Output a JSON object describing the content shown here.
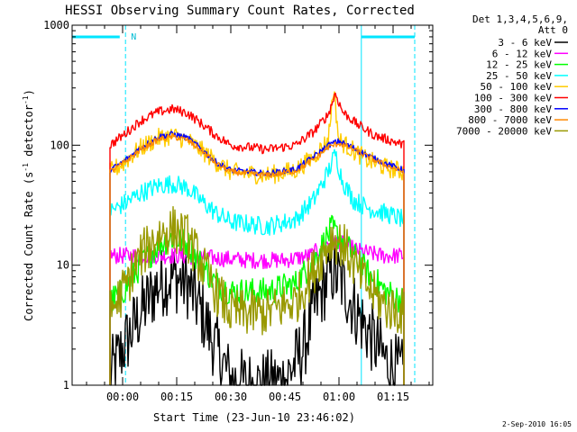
{
  "chart_data": {
    "type": "line",
    "title": "HESSI Observing Summary Count Rates, Corrected",
    "xlabel": "Start Time (23-Jun-10 23:46:02)",
    "ylabel_main": "Corrected Count Rate (s",
    "ylabel_exp1": "-1",
    "ylabel_mid": " detector",
    "ylabel_exp2": "-1",
    "ylabel_end": ")",
    "y_scale": "log",
    "ylim": [
      1,
      1000
    ],
    "xlim_minutes": [
      -14,
      86
    ],
    "x_ticks": [
      {
        "value": 0,
        "label": "00:00"
      },
      {
        "value": 15,
        "label": "00:15"
      },
      {
        "value": 30,
        "label": "00:30"
      },
      {
        "value": 45,
        "label": "00:45"
      },
      {
        "value": 60,
        "label": "01:00"
      },
      {
        "value": 75,
        "label": "01:15"
      }
    ],
    "y_ticks": [
      {
        "value": 1,
        "label": "1"
      },
      {
        "value": 10,
        "label": "10"
      },
      {
        "value": 100,
        "label": "100"
      },
      {
        "value": 1000,
        "label": "1000"
      }
    ],
    "legend_header": [
      "Det 1,3,4,5,6,9,",
      "Att 0"
    ],
    "legend_position": "right",
    "night_label": "N",
    "timestamp": "2-Sep-2010 16:05",
    "data_start_min": -3.5,
    "data_end_min": 78,
    "markers": [
      {
        "x": -14,
        "style": "solid"
      },
      {
        "x": 0.8,
        "style": "dashed"
      },
      {
        "x": 66.2,
        "style": "solid"
      },
      {
        "x": 81,
        "style": "dashed"
      }
    ],
    "night_bars": [
      {
        "x0": -14,
        "x1": -0.8,
        "y": 800
      },
      {
        "x0": 66.2,
        "x1": 81,
        "y": 800
      }
    ],
    "series": [
      {
        "name": "3 - 6 keV",
        "color": "#000000",
        "noise": 0.3,
        "points": [
          [
            -3.5,
            1.2
          ],
          [
            0,
            2
          ],
          [
            5,
            4
          ],
          [
            10,
            7
          ],
          [
            14,
            8
          ],
          [
            18,
            7
          ],
          [
            22,
            4
          ],
          [
            26,
            2
          ],
          [
            30,
            1.1
          ],
          [
            35,
            1
          ],
          [
            40,
            1
          ],
          [
            45,
            1.1
          ],
          [
            50,
            2
          ],
          [
            54,
            5
          ],
          [
            58,
            9
          ],
          [
            61,
            7
          ],
          [
            65,
            4
          ],
          [
            69,
            2.5
          ],
          [
            73,
            1.6
          ],
          [
            78,
            1.2
          ]
        ]
      },
      {
        "name": "6 - 12 keV",
        "color": "#ff00ff",
        "noise": 0.07,
        "points": [
          [
            -3.5,
            12
          ],
          [
            5,
            12
          ],
          [
            15,
            12
          ],
          [
            25,
            11.5
          ],
          [
            35,
            11
          ],
          [
            45,
            11
          ],
          [
            52,
            12
          ],
          [
            58,
            16
          ],
          [
            61,
            15
          ],
          [
            66,
            13
          ],
          [
            72,
            12
          ],
          [
            78,
            12
          ]
        ]
      },
      {
        "name": "12 - 25 keV",
        "color": "#00ff00",
        "noise": 0.12,
        "points": [
          [
            -3.5,
            5
          ],
          [
            0,
            6
          ],
          [
            5,
            10
          ],
          [
            10,
            15
          ],
          [
            14,
            17
          ],
          [
            18,
            15
          ],
          [
            22,
            10
          ],
          [
            26,
            7
          ],
          [
            30,
            6
          ],
          [
            40,
            6
          ],
          [
            48,
            7
          ],
          [
            53,
            11
          ],
          [
            58,
            20
          ],
          [
            61,
            16
          ],
          [
            65,
            11
          ],
          [
            69,
            8
          ],
          [
            73,
            6
          ],
          [
            78,
            5
          ]
        ]
      },
      {
        "name": "25 - 50 keV",
        "color": "#00ffff",
        "noise": 0.08,
        "points": [
          [
            -3.5,
            28
          ],
          [
            0,
            32
          ],
          [
            5,
            40
          ],
          [
            10,
            46
          ],
          [
            14,
            48
          ],
          [
            18,
            44
          ],
          [
            22,
            34
          ],
          [
            26,
            27
          ],
          [
            30,
            23
          ],
          [
            40,
            21
          ],
          [
            48,
            24
          ],
          [
            53,
            35
          ],
          [
            57,
            60
          ],
          [
            59,
            85
          ],
          [
            61,
            50
          ],
          [
            64,
            35
          ],
          [
            68,
            30
          ],
          [
            73,
            27
          ],
          [
            78,
            24
          ]
        ]
      },
      {
        "name": "50 - 100 keV",
        "color": "#ffcc00",
        "noise": 0.08,
        "points": [
          [
            -3.5,
            60
          ],
          [
            0,
            70
          ],
          [
            5,
            95
          ],
          [
            10,
            115
          ],
          [
            14,
            120
          ],
          [
            18,
            110
          ],
          [
            22,
            90
          ],
          [
            26,
            72
          ],
          [
            30,
            60
          ],
          [
            40,
            56
          ],
          [
            48,
            62
          ],
          [
            53,
            80
          ],
          [
            57,
            110
          ],
          [
            58.5,
            300
          ],
          [
            60,
            110
          ],
          [
            64,
            90
          ],
          [
            68,
            75
          ],
          [
            73,
            65
          ],
          [
            78,
            60
          ]
        ]
      },
      {
        "name": "100 - 300 keV",
        "color": "#ff0000",
        "noise": 0.04,
        "points": [
          [
            -3.5,
            100
          ],
          [
            0,
            120
          ],
          [
            5,
            160
          ],
          [
            10,
            190
          ],
          [
            14,
            200
          ],
          [
            18,
            185
          ],
          [
            22,
            150
          ],
          [
            26,
            120
          ],
          [
            30,
            100
          ],
          [
            40,
            92
          ],
          [
            48,
            100
          ],
          [
            53,
            130
          ],
          [
            57,
            180
          ],
          [
            59,
            270
          ],
          [
            61,
            190
          ],
          [
            65,
            150
          ],
          [
            70,
            120
          ],
          [
            75,
            108
          ],
          [
            78,
            100
          ]
        ]
      },
      {
        "name": "300 - 800 keV",
        "color": "#0000ff",
        "noise": 0.025,
        "points": [
          [
            -3.5,
            62
          ],
          [
            0,
            72
          ],
          [
            5,
            95
          ],
          [
            10,
            118
          ],
          [
            14,
            124
          ],
          [
            18,
            115
          ],
          [
            22,
            92
          ],
          [
            26,
            72
          ],
          [
            30,
            62
          ],
          [
            40,
            58
          ],
          [
            48,
            63
          ],
          [
            53,
            80
          ],
          [
            57,
            100
          ],
          [
            60,
            108
          ],
          [
            64,
            95
          ],
          [
            68,
            82
          ],
          [
            73,
            70
          ],
          [
            78,
            62
          ]
        ]
      },
      {
        "name": "800 - 7000 keV",
        "color": "#ff8800",
        "noise": 0.025,
        "points": [
          [
            -3.5,
            60
          ],
          [
            0,
            70
          ],
          [
            5,
            92
          ],
          [
            10,
            112
          ],
          [
            14,
            118
          ],
          [
            18,
            110
          ],
          [
            22,
            90
          ],
          [
            26,
            70
          ],
          [
            30,
            60
          ],
          [
            40,
            56
          ],
          [
            48,
            61
          ],
          [
            53,
            76
          ],
          [
            57,
            96
          ],
          [
            60,
            104
          ],
          [
            64,
            92
          ],
          [
            68,
            80
          ],
          [
            73,
            68
          ],
          [
            78,
            60
          ]
        ]
      },
      {
        "name": "7000 - 20000 keV",
        "color": "#999900",
        "noise": 0.2,
        "points": [
          [
            -3.5,
            4
          ],
          [
            0,
            6
          ],
          [
            5,
            12
          ],
          [
            10,
            18
          ],
          [
            14,
            20
          ],
          [
            18,
            17
          ],
          [
            22,
            10
          ],
          [
            26,
            6
          ],
          [
            30,
            4
          ],
          [
            40,
            4
          ],
          [
            48,
            5
          ],
          [
            53,
            9
          ],
          [
            58,
            17
          ],
          [
            61,
            15
          ],
          [
            65,
            9
          ],
          [
            69,
            6
          ],
          [
            73,
            4.5
          ],
          [
            78,
            4
          ]
        ]
      }
    ]
  }
}
